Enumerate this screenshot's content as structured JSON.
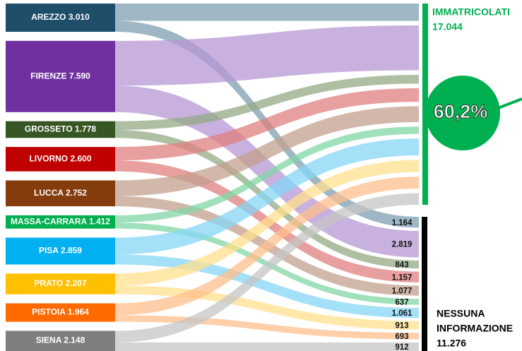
{
  "chart_data": {
    "type": "sankey",
    "nodes": [
      {
        "name": "AREZZO",
        "value": 3010,
        "value_label": "3.010",
        "color": "#1f4e6b",
        "flow_color": "#7f9fb2",
        "nessuna": 1164,
        "nessuna_label": "1.164"
      },
      {
        "name": "FIRENZE",
        "value": 7590,
        "value_label": "7.590",
        "color": "#7030a0",
        "flow_color": "#b597d3",
        "nessuna": 2819,
        "nessuna_label": "2.819"
      },
      {
        "name": "GROSSETO",
        "value": 1778,
        "value_label": "1.778",
        "color": "#375623",
        "flow_color": "#93a985",
        "nessuna": 843,
        "nessuna_label": "843"
      },
      {
        "name": "LIVORNO",
        "value": 2600,
        "value_label": "2.600",
        "color": "#c00000",
        "flow_color": "#e07f7f",
        "nessuna": 1157,
        "nessuna_label": "1.157"
      },
      {
        "name": "LUCCA",
        "value": 2752,
        "value_label": "2.752",
        "color": "#843c0c",
        "flow_color": "#c1a08e",
        "nessuna": 1077,
        "nessuna_label": "1.077"
      },
      {
        "name": "MASSA-CARRARA",
        "value": 1412,
        "value_label": "1.412",
        "color": "#00b050",
        "flow_color": "#80d7a6",
        "nessuna": 637,
        "nessuna_label": "637"
      },
      {
        "name": "PISA",
        "value": 2859,
        "value_label": "2.859",
        "color": "#00b0f0",
        "flow_color": "#85d6f5",
        "nessuna": 1061,
        "nessuna_label": "1.061"
      },
      {
        "name": "PRATO",
        "value": 2207,
        "value_label": "2.207",
        "color": "#ffc000",
        "flow_color": "#ffe08c",
        "nessuna": 913,
        "nessuna_label": "913"
      },
      {
        "name": "PISTOIA",
        "value": 1964,
        "value_label": "1.964",
        "color": "#ff6a00",
        "flow_color": "#ffbf8c",
        "nessuna": 693,
        "nessuna_label": "693"
      },
      {
        "name": "SIENA",
        "value": 2148,
        "value_label": "2.148",
        "color": "#7f7f7f",
        "flow_color": "#c6c6c6",
        "nessuna": 912,
        "nessuna_label": "912"
      }
    ],
    "immatricolati": {
      "label": "IMMATRICOLATI",
      "value": 17044,
      "value_label": "17.044",
      "color": "#00b050",
      "percent": {
        "value": 60.2,
        "label": "60,2%"
      }
    },
    "nessuna_informazione": {
      "label_lines": [
        "NESSUNA",
        "INFORMAZIONE"
      ],
      "value": 11276,
      "value_label": "11.276",
      "color": "#000000"
    }
  }
}
